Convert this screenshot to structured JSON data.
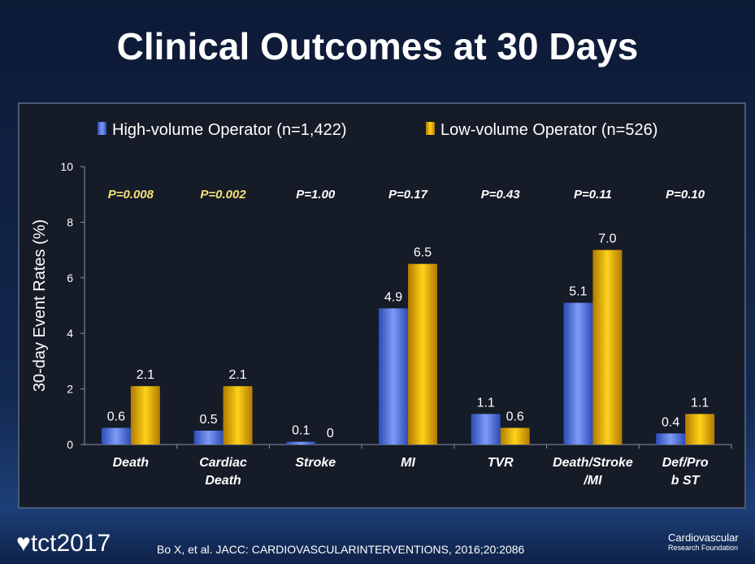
{
  "title": "Clinical Outcomes at 30 Days",
  "footer": {
    "citation": "Bo X, et al. JACC: CARDIOVASCULARINTERVENTIONS, 2016;20:2086",
    "logo_left": "tct2017",
    "logo_right": "Cardiovascular Research Foundation"
  },
  "chart_data": {
    "type": "bar",
    "title": "",
    "ylabel": "30-day Event Rates (%)",
    "xlabel": "",
    "ylim": [
      0,
      10
    ],
    "yticks": [
      0,
      2,
      4,
      6,
      8,
      10
    ],
    "legend_position": "top",
    "categories": [
      [
        "Death"
      ],
      [
        "Cardiac",
        "Death"
      ],
      [
        "Stroke"
      ],
      [
        "MI"
      ],
      [
        "TVR"
      ],
      [
        "Death/Stroke",
        "/MI"
      ],
      [
        "Def/Pro",
        "b ST"
      ]
    ],
    "p_values": [
      "P=0.008",
      "P=0.002",
      "P=1.00",
      "P=0.17",
      "P=0.43",
      "P=0.11",
      "P=0.10"
    ],
    "p_highlight": [
      true,
      true,
      false,
      false,
      false,
      false,
      false
    ],
    "series": [
      {
        "name": "High-volume Operator (n=1,422)",
        "color": "#4f74e0",
        "values": [
          0.6,
          0.5,
          0.1,
          4.9,
          1.1,
          5.1,
          0.4
        ]
      },
      {
        "name": "Low-volume Operator (n=526)",
        "color": "#e8a800",
        "values": [
          2.1,
          2.1,
          0,
          6.5,
          0.6,
          7.0,
          1.1
        ]
      }
    ],
    "colors": {
      "significant_p": "#f5e07a",
      "other_p": "#ffffff"
    }
  }
}
